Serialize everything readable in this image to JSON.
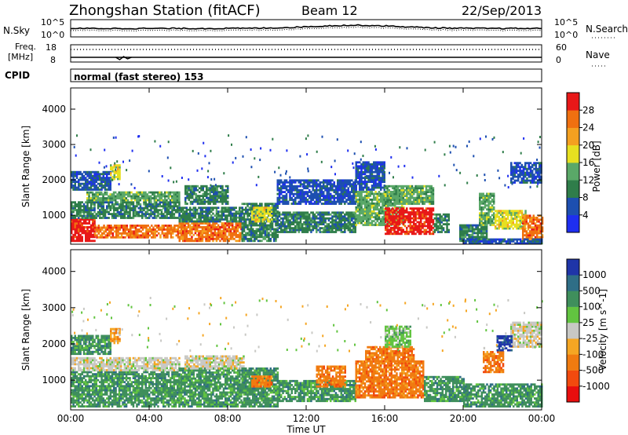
{
  "header": {
    "station": "Zhongshan Station (fitACF)",
    "beam": "Beam 12",
    "date": "22/Sep/2013"
  },
  "noise_panel": {
    "left_label": "N.Sky",
    "left_ticks": [
      "10^5",
      "10^0"
    ],
    "right_label": "N.Search",
    "right_ticks": [
      "10^5",
      "10^0"
    ]
  },
  "freq_panel": {
    "left_label_1": "Freq.",
    "left_label_2": "[MHz]",
    "left_ticks": [
      "18",
      "8"
    ],
    "right_label": "Nave",
    "right_ticks": [
      "60",
      "0"
    ]
  },
  "cpid": {
    "label": "CPID",
    "value": "normal (fast stereo) 153"
  },
  "colors": {
    "power_scale": [
      "#1e2ef0",
      "#1d4fb0",
      "#2f7d4a",
      "#5aa868",
      "#e7e020",
      "#f4a020",
      "#f07010",
      "#e81818"
    ],
    "velocity_scale": [
      "#e80e0e",
      "#f24a0e",
      "#f07b10",
      "#f5a623",
      "#c8c8c4",
      "#62c440",
      "#3f8f5c",
      "#2f6e86",
      "#1f35a8"
    ]
  },
  "chart_data": [
    {
      "type": "heatmap",
      "name": "power-panel",
      "ylabel": "Slant Range [km]",
      "yticks": [
        1000,
        2000,
        3000,
        4000
      ],
      "ylim": [
        180,
        4600
      ],
      "xlim": [
        0,
        24
      ],
      "colorbar": {
        "label": "Power [dB]",
        "ticks": [
          "4",
          "8",
          "12",
          "16",
          "20",
          "24",
          "28"
        ]
      },
      "regions": [
        {
          "t0": 0.0,
          "t1": 1.2,
          "r0": 250,
          "r1": 900,
          "level": 7
        },
        {
          "t0": 1.2,
          "t1": 5.5,
          "r0": 350,
          "r1": 700,
          "level": 6
        },
        {
          "t0": 0.0,
          "t1": 5.5,
          "r0": 900,
          "r1": 1350,
          "level": 2
        },
        {
          "t0": 0.8,
          "t1": 5.5,
          "r0": 1400,
          "r1": 1650,
          "level": 3
        },
        {
          "t0": 0.0,
          "t1": 2.0,
          "r0": 1700,
          "r1": 2200,
          "level": 1
        },
        {
          "t0": 2.0,
          "t1": 2.5,
          "r0": 2000,
          "r1": 2400,
          "level": 4
        },
        {
          "t0": 5.5,
          "t1": 8.7,
          "r0": 250,
          "r1": 800,
          "level": 6
        },
        {
          "t0": 5.5,
          "t1": 8.7,
          "r0": 800,
          "r1": 1200,
          "level": 2
        },
        {
          "t0": 5.8,
          "t1": 8.0,
          "r0": 1300,
          "r1": 1800,
          "level": 2
        },
        {
          "t0": 8.7,
          "t1": 10.5,
          "r0": 250,
          "r1": 1300,
          "level": 2
        },
        {
          "t0": 9.2,
          "t1": 10.2,
          "r0": 800,
          "r1": 1200,
          "level": 4
        },
        {
          "t0": 10.5,
          "t1": 14.5,
          "r0": 500,
          "r1": 1100,
          "level": 2
        },
        {
          "t0": 10.5,
          "t1": 14.5,
          "r0": 1300,
          "r1": 2000,
          "level": 1
        },
        {
          "t0": 14.5,
          "t1": 17.0,
          "r0": 700,
          "r1": 1650,
          "level": 3
        },
        {
          "t0": 14.5,
          "t1": 16.0,
          "r0": 1700,
          "r1": 2500,
          "level": 1
        },
        {
          "t0": 16.0,
          "t1": 18.5,
          "r0": 450,
          "r1": 1200,
          "level": 7
        },
        {
          "t0": 16.0,
          "t1": 18.5,
          "r0": 1300,
          "r1": 1800,
          "level": 3
        },
        {
          "t0": 18.5,
          "t1": 19.3,
          "r0": 500,
          "r1": 1000,
          "level": 2
        },
        {
          "t0": 19.8,
          "t1": 21.2,
          "r0": 250,
          "r1": 700,
          "level": 2
        },
        {
          "t0": 20.8,
          "t1": 21.6,
          "r0": 700,
          "r1": 1600,
          "level": 3
        },
        {
          "t0": 21.6,
          "t1": 23.2,
          "r0": 600,
          "r1": 1100,
          "level": 4
        },
        {
          "t0": 23.0,
          "t1": 24.0,
          "r0": 300,
          "r1": 1000,
          "level": 6
        },
        {
          "t0": 22.4,
          "t1": 24.0,
          "r0": 1900,
          "r1": 2500,
          "level": 1
        },
        {
          "t0": 20.0,
          "t1": 24.0,
          "r0": 180,
          "r1": 300,
          "level": 1
        }
      ]
    },
    {
      "type": "heatmap",
      "name": "velocity-panel",
      "ylabel": "Slant Range [km]",
      "xlabel": "Time UT",
      "xticks": [
        "00:00",
        "04:00",
        "08:00",
        "12:00",
        "16:00",
        "20:00",
        "00:00"
      ],
      "yticks": [
        1000,
        2000,
        3000,
        4000
      ],
      "ylim": [
        180,
        4600
      ],
      "xlim": [
        0,
        24
      ],
      "colorbar": {
        "label": "Velocity [m s^-1]",
        "ticks": [
          "1000",
          "500",
          "100",
          "25",
          "-25",
          "-100",
          "-500",
          "-1000"
        ]
      },
      "regions": [
        {
          "t0": 0.0,
          "t1": 5.5,
          "r0": 250,
          "r1": 700,
          "level": 6
        },
        {
          "t0": 0.0,
          "t1": 5.5,
          "r0": 700,
          "r1": 1200,
          "level": 6
        },
        {
          "t0": 0.0,
          "t1": 5.5,
          "r0": 1250,
          "r1": 1600,
          "level": 4
        },
        {
          "t0": 0.0,
          "t1": 2.0,
          "r0": 1700,
          "r1": 2200,
          "level": 6
        },
        {
          "t0": 2.0,
          "t1": 2.5,
          "r0": 2000,
          "r1": 2400,
          "level": 3
        },
        {
          "t0": 5.5,
          "t1": 8.7,
          "r0": 250,
          "r1": 800,
          "level": 6
        },
        {
          "t0": 5.5,
          "t1": 8.7,
          "r0": 800,
          "r1": 1300,
          "level": 6
        },
        {
          "t0": 5.8,
          "t1": 8.8,
          "r0": 1300,
          "r1": 1650,
          "level": 4
        },
        {
          "t0": 8.7,
          "t1": 10.5,
          "r0": 250,
          "r1": 1300,
          "level": 6
        },
        {
          "t0": 9.2,
          "t1": 10.2,
          "r0": 800,
          "r1": 1100,
          "level": 2
        },
        {
          "t0": 10.5,
          "t1": 14.5,
          "r0": 400,
          "r1": 1000,
          "level": 6
        },
        {
          "t0": 12.5,
          "t1": 14.0,
          "r0": 800,
          "r1": 1400,
          "level": 2
        },
        {
          "t0": 14.5,
          "t1": 18.0,
          "r0": 500,
          "r1": 1500,
          "level": 2
        },
        {
          "t0": 15.0,
          "t1": 17.5,
          "r0": 1500,
          "r1": 1900,
          "level": 2
        },
        {
          "t0": 16.0,
          "t1": 17.3,
          "r0": 1900,
          "r1": 2500,
          "level": 5
        },
        {
          "t0": 18.0,
          "t1": 20.0,
          "r0": 400,
          "r1": 1100,
          "level": 6
        },
        {
          "t0": 20.0,
          "t1": 24.0,
          "r0": 250,
          "r1": 900,
          "level": 6
        },
        {
          "t0": 21.0,
          "t1": 22.0,
          "r0": 1200,
          "r1": 1800,
          "level": 2
        },
        {
          "t0": 22.4,
          "t1": 24.0,
          "r0": 1900,
          "r1": 2600,
          "level": 4
        },
        {
          "t0": 21.7,
          "t1": 22.5,
          "r0": 1800,
          "r1": 2200,
          "level": 8
        }
      ]
    }
  ]
}
